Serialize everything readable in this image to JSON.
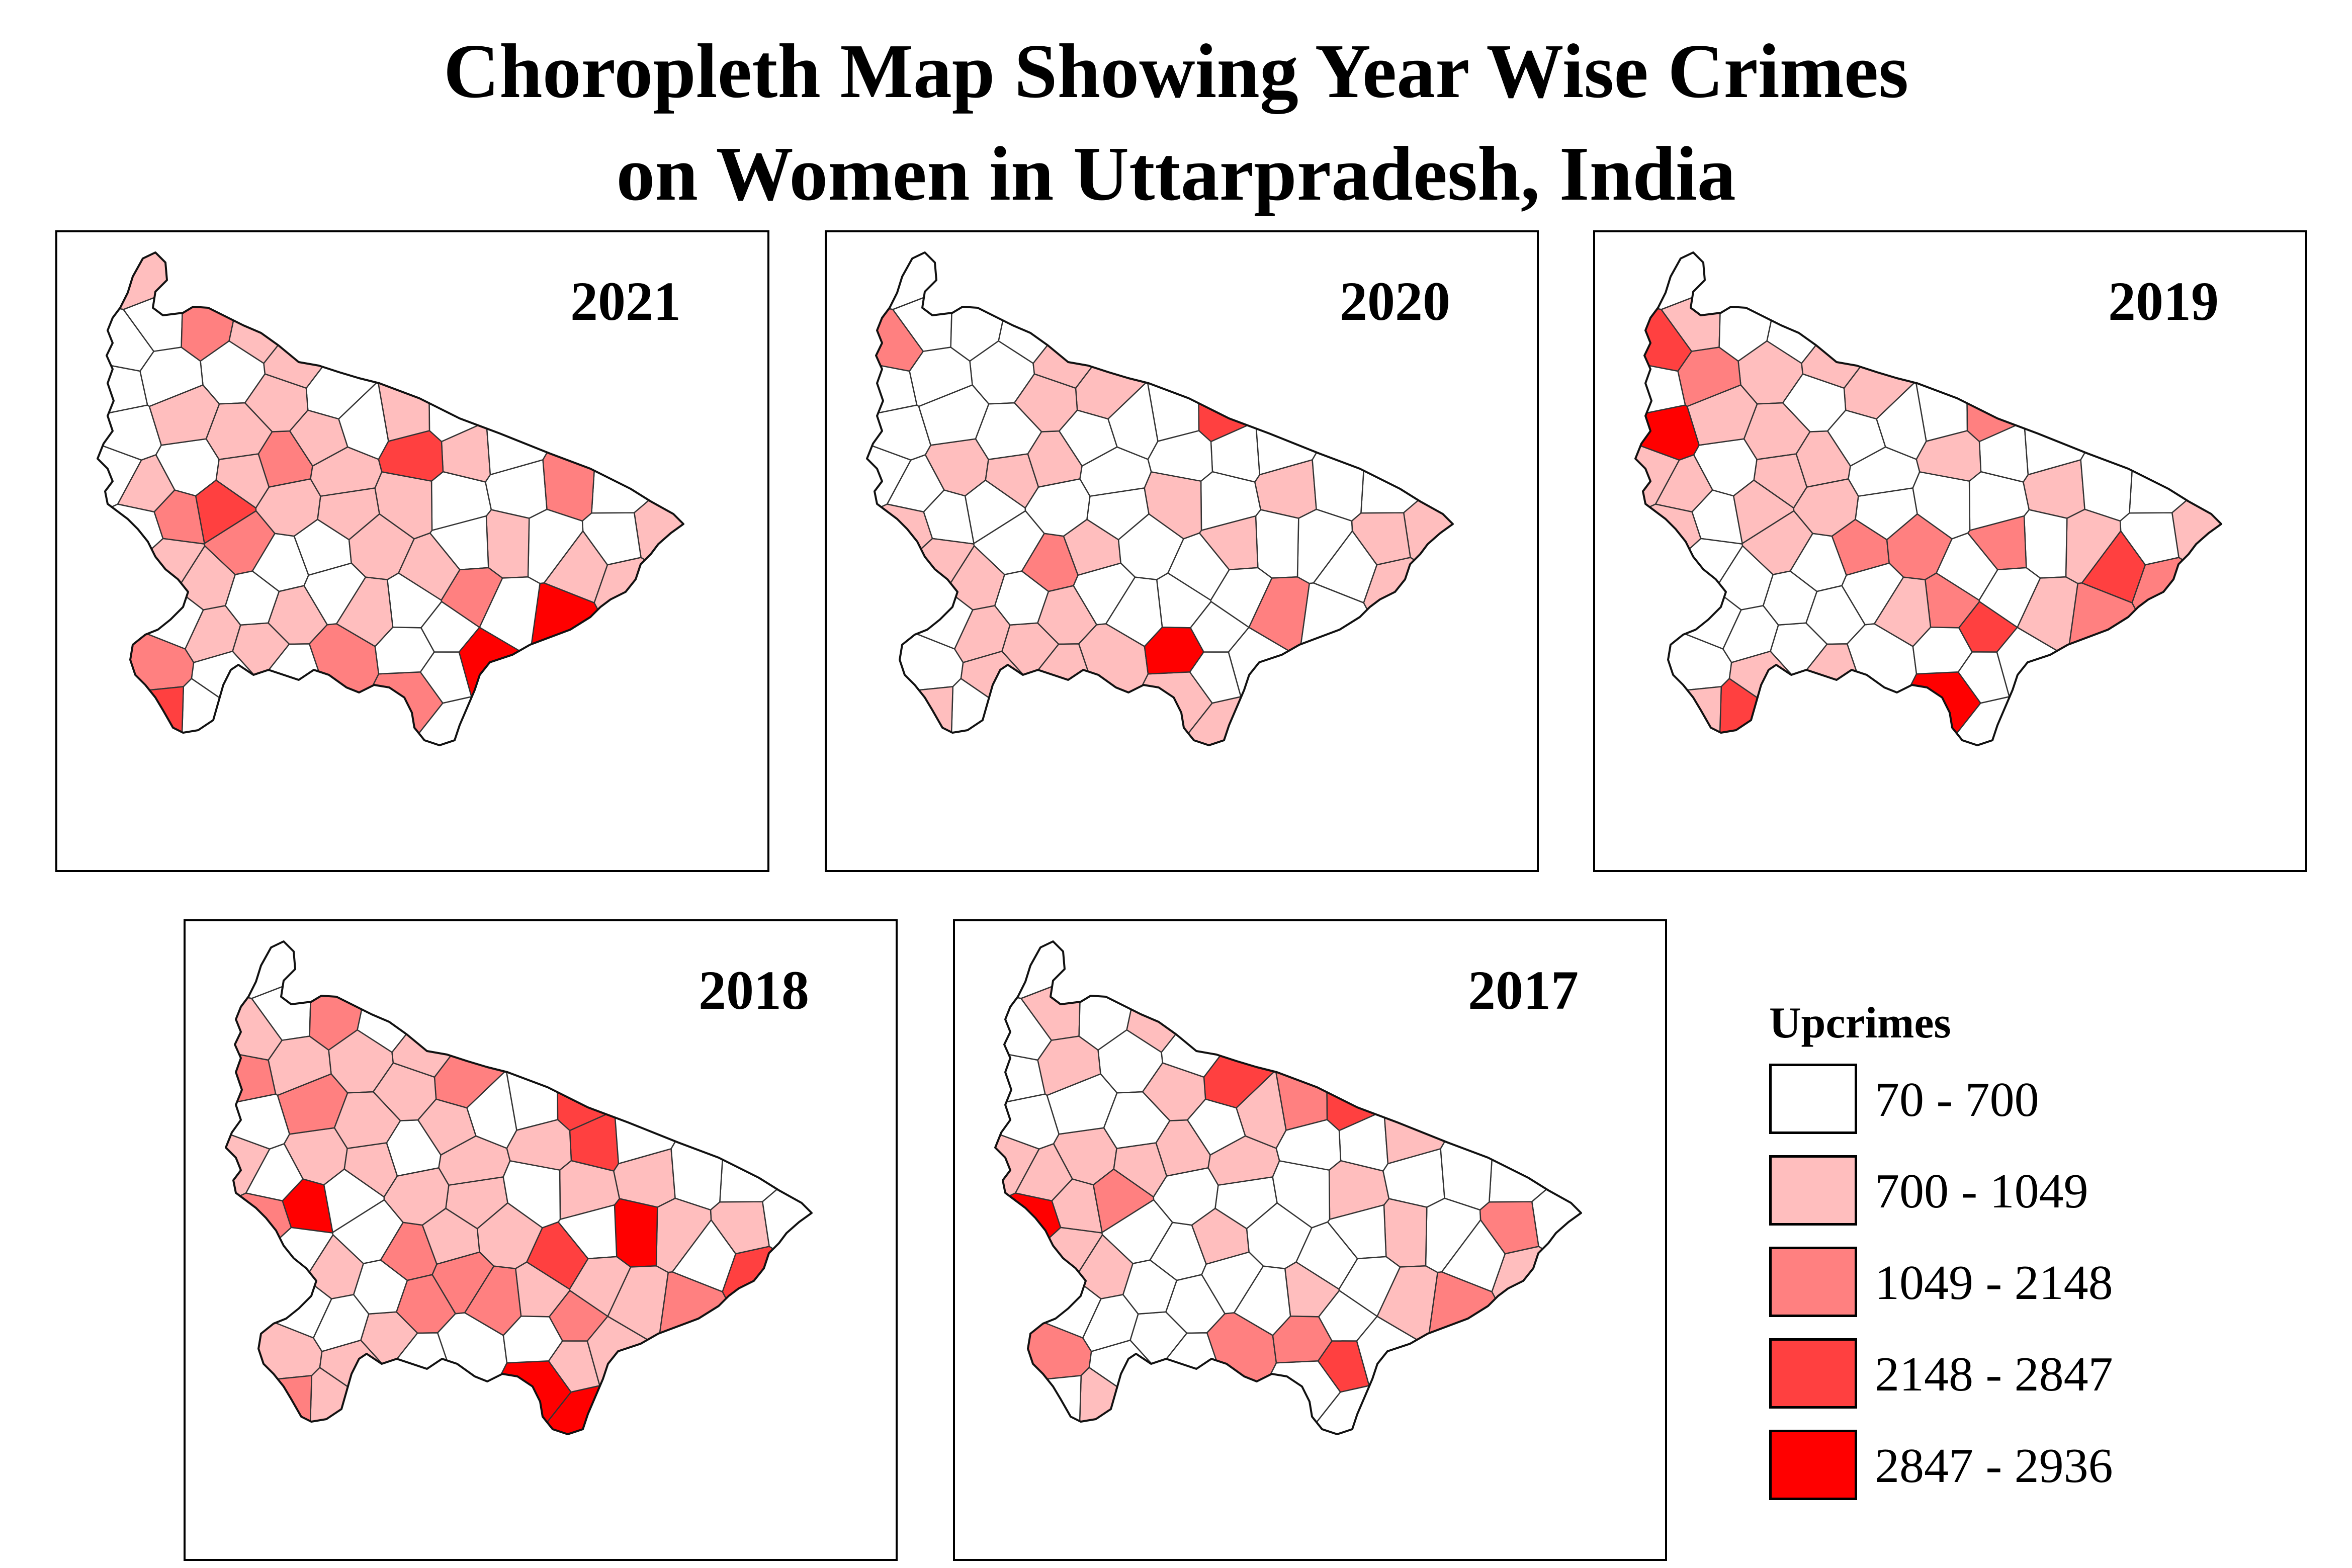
{
  "title": {
    "line1": "Choropleth Map Showing Year Wise Crimes",
    "line2": "on Women in Uttarpradesh, India"
  },
  "legend": {
    "title": "Upcrimes",
    "classes": [
      {
        "label": "70 - 700",
        "color": "#ffffff"
      },
      {
        "label": "700 - 1049",
        "color": "#ffbebe"
      },
      {
        "label": "1049 - 2148",
        "color": "#ff8080"
      },
      {
        "label": "2148 - 2847",
        "color": "#ff4040"
      },
      {
        "label": "2847 - 2936",
        "color": "#ff0000"
      }
    ]
  },
  "chart_data": {
    "type": "choropleth",
    "region": "Uttar Pradesh, India",
    "variable": "Upcrimes",
    "classes": [
      "70 - 700",
      "700 - 1049",
      "1049 - 2148",
      "2148 - 2847",
      "2847 - 2936"
    ],
    "maps": [
      {
        "year": "2021",
        "class_counts": [
          33,
          27,
          9,
          3,
          2
        ],
        "highest_class_districts": 2
      },
      {
        "year": "2020",
        "class_counts": [
          43,
          25,
          3,
          1,
          1
        ],
        "highest_class_districts": 1
      },
      {
        "year": "2019",
        "class_counts": [
          38,
          23,
          8,
          4,
          2
        ],
        "highest_class_districts": 2
      },
      {
        "year": "2018",
        "class_counts": [
          25,
          30,
          12,
          4,
          4
        ],
        "highest_class_districts": 4
      },
      {
        "year": "2017",
        "class_counts": [
          42,
          22,
          7,
          3,
          1
        ],
        "highest_class_districts": 1
      }
    ]
  }
}
